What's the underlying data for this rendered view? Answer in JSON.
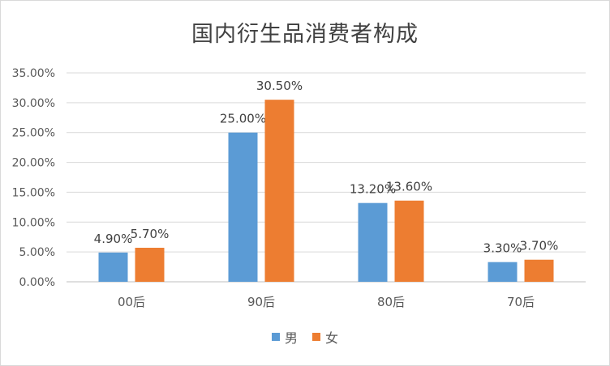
{
  "chart_data": {
    "type": "bar",
    "title": "国内衍生品消费者构成",
    "categories": [
      "00后",
      "90后",
      "80后",
      "70后"
    ],
    "series": [
      {
        "name": "男",
        "color": "#5b9bd5",
        "values": [
          4.9,
          25.0,
          13.2,
          3.3
        ],
        "labels": [
          "4.90%",
          "25.00%",
          "13.20%",
          "3.30%"
        ]
      },
      {
        "name": "女",
        "color": "#ed7d31",
        "values": [
          5.7,
          30.5,
          13.6,
          3.7
        ],
        "labels": [
          "5.70%",
          "30.50%",
          "13.60%",
          "3.70%"
        ]
      }
    ],
    "ylim": [
      0,
      35
    ],
    "yticks": [
      "0.00%",
      "5.00%",
      "10.00%",
      "15.00%",
      "20.00%",
      "25.00%",
      "30.00%",
      "35.00%"
    ],
    "grid": true,
    "legend_position": "bottom"
  }
}
